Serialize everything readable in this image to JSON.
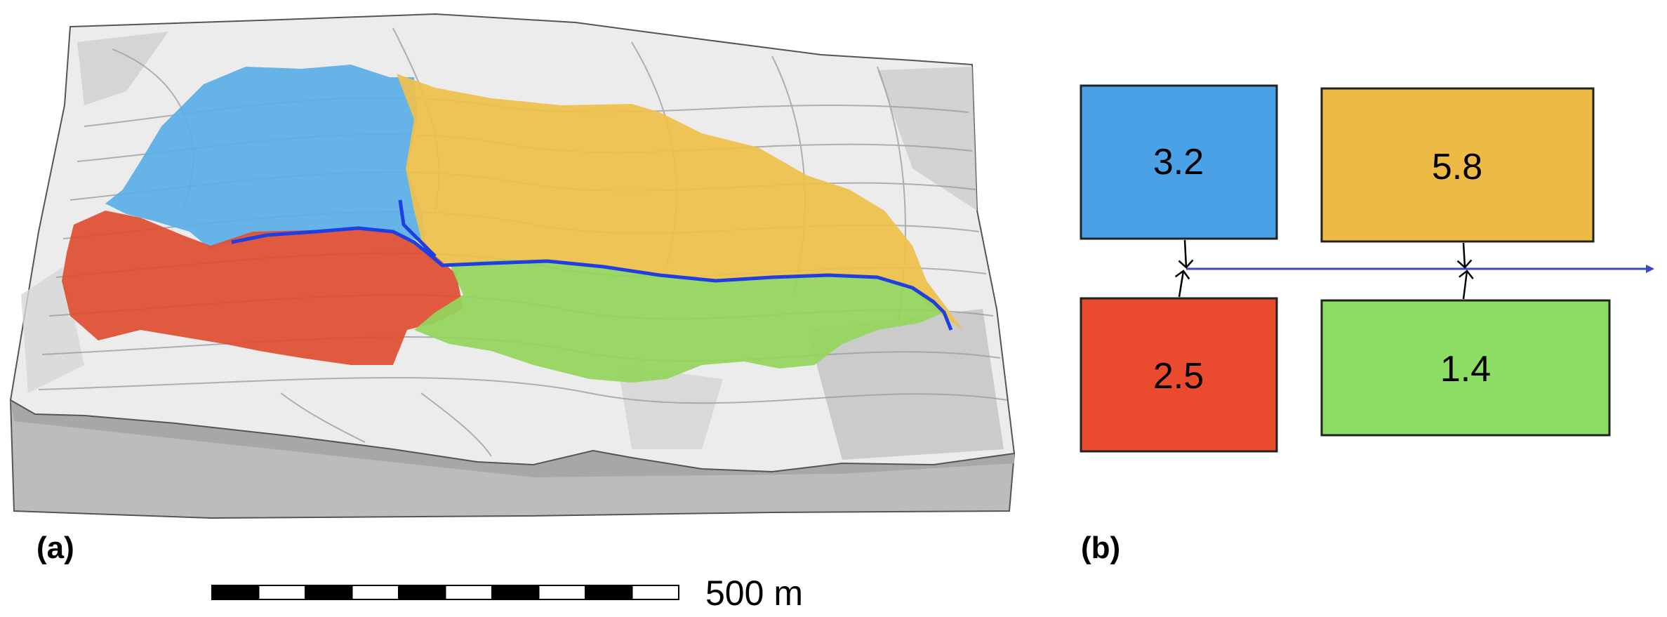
{
  "panels": {
    "a_label": "(a)",
    "b_label": "(b)"
  },
  "scale_bar": {
    "label": "500 m",
    "segments": 10
  },
  "catchments": [
    {
      "id": "blue",
      "value": "3.2",
      "color": "#4aa1e6"
    },
    {
      "id": "yellow",
      "value": "5.8",
      "color": "#ecba45"
    },
    {
      "id": "red",
      "value": "2.5",
      "color": "#ea4b2e"
    },
    {
      "id": "green",
      "value": "1.4",
      "color": "#8bdd63"
    }
  ],
  "colors": {
    "stream": "#1f3fe0",
    "arrow": "#3b47c9",
    "terrain": "#e9e9e9",
    "block_side": "#b9b9b9"
  }
}
